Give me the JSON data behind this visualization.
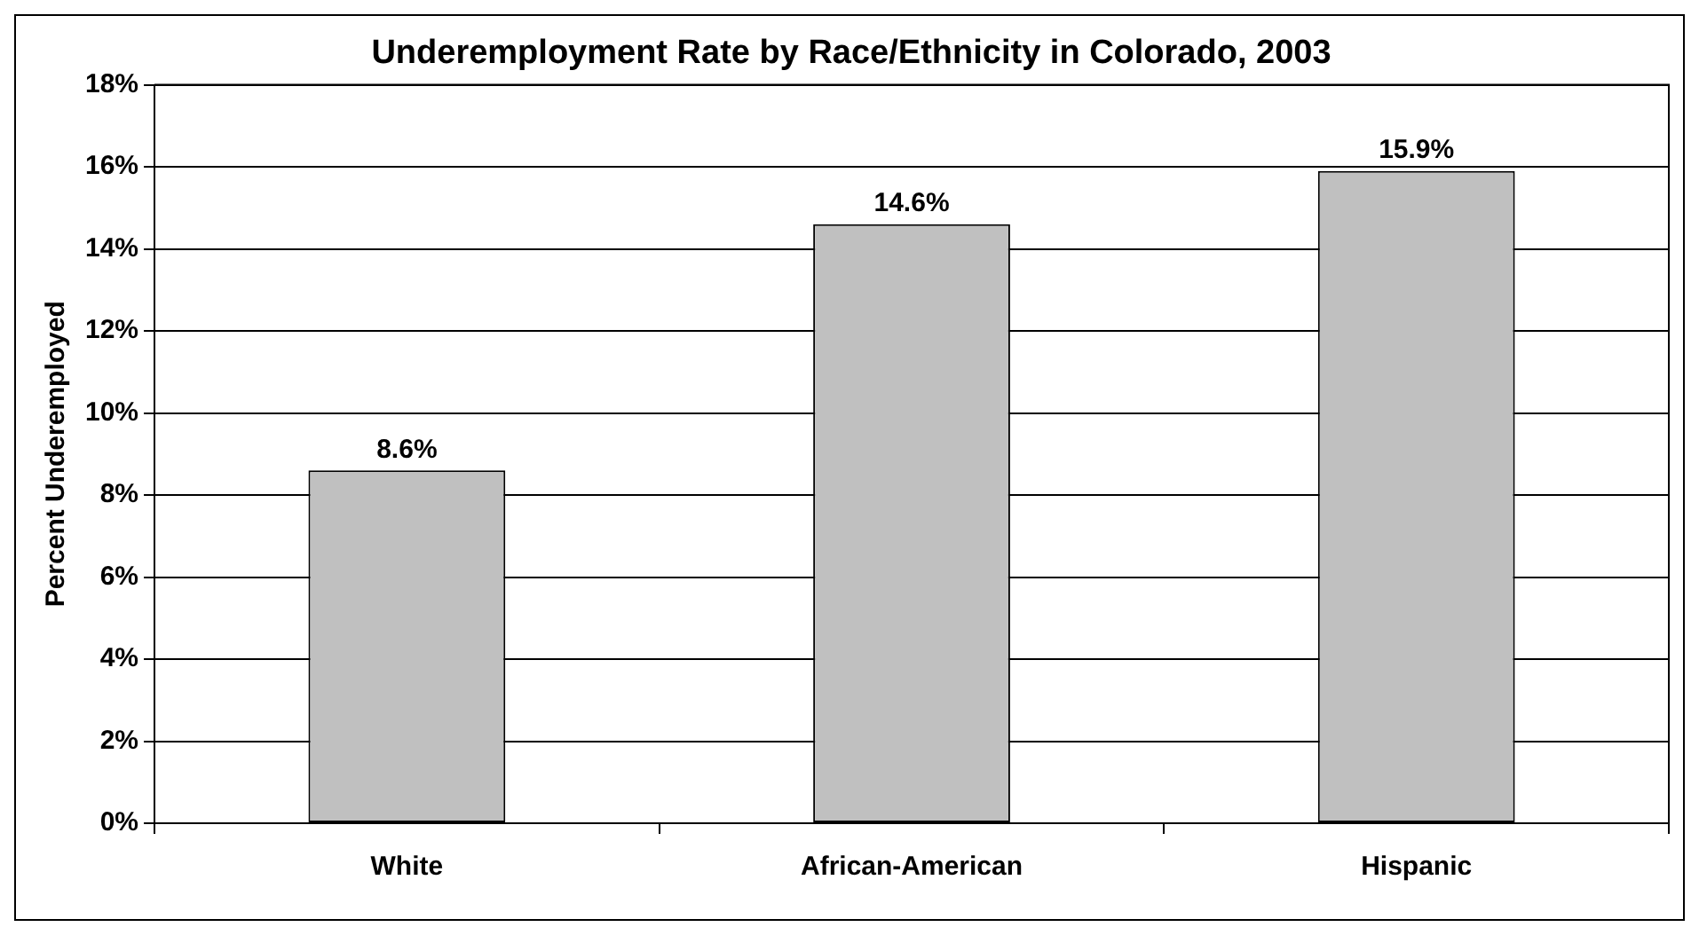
{
  "chart_data": {
    "type": "bar",
    "title": "Underemployment Rate by Race/Ethnicity in Colorado, 2003",
    "ylabel": "Percent Underemployed",
    "categories": [
      "White",
      "African-American",
      "Hispanic"
    ],
    "values": [
      8.6,
      14.6,
      15.9
    ],
    "value_labels": [
      "8.6%",
      "14.6%",
      "15.9%"
    ],
    "color": "#c0c0c0",
    "ylim": [
      0,
      18
    ],
    "yticks": [
      {
        "value": 0,
        "label": "0%"
      },
      {
        "value": 2,
        "label": "2%"
      },
      {
        "value": 4,
        "label": "4%"
      },
      {
        "value": 6,
        "label": "6%"
      },
      {
        "value": 8,
        "label": "8%"
      },
      {
        "value": 10,
        "label": "10%"
      },
      {
        "value": 12,
        "label": "12%"
      },
      {
        "value": 14,
        "label": "14%"
      },
      {
        "value": 16,
        "label": "16%"
      },
      {
        "value": 18,
        "label": "18%"
      }
    ],
    "grid": "y",
    "legend": false
  }
}
